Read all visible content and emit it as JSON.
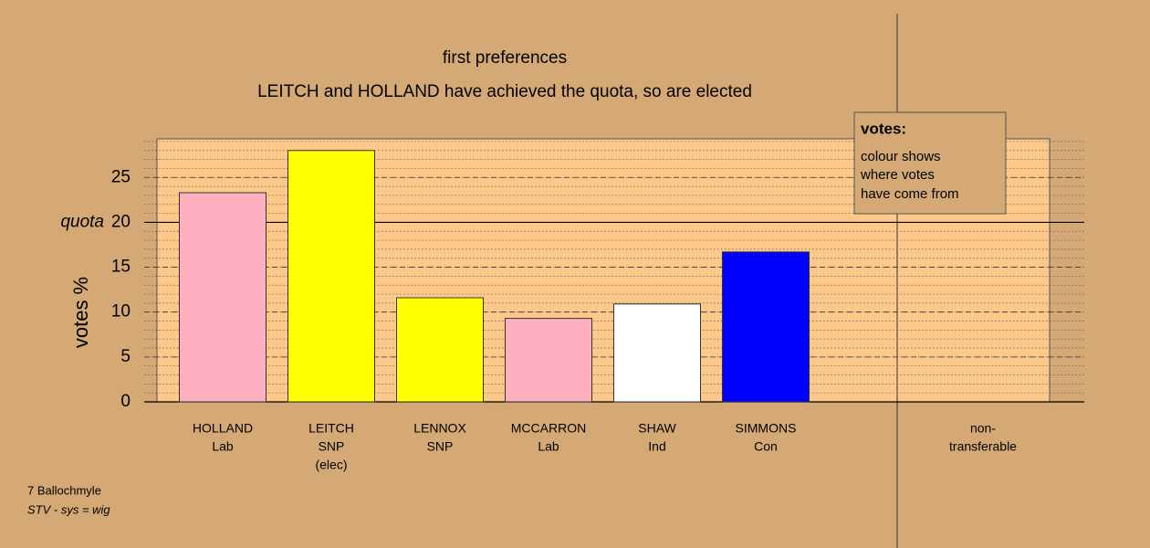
{
  "chart_data": {
    "type": "bar",
    "title": "first preferences",
    "subtitle": "LEITCH and HOLLAND have achieved the quota, so are elected",
    "y_label": "votes %",
    "categories": [
      [
        "HOLLAND",
        "Lab"
      ],
      [
        "LEITCH",
        "SNP",
        "(elec)"
      ],
      [
        "LENNOX",
        "SNP"
      ],
      [
        "MCCARRON",
        "Lab"
      ],
      [
        "SHAW",
        "Ind"
      ],
      [
        "SIMMONS",
        "Con"
      ],
      [
        "non-",
        "transferable"
      ]
    ],
    "values": [
      23.3,
      28,
      11.6,
      9.3,
      10.9,
      16.7,
      null
    ],
    "colors": [
      "#ffb0c0",
      "#ffff00",
      "#ffff00",
      "#ffb0c0",
      "#ffffff",
      "#0000ff",
      null
    ],
    "ylim": [
      0,
      29.3
    ],
    "yticks": [
      0,
      5,
      10,
      15,
      20,
      25
    ],
    "quota": 20,
    "quota_label": "quota",
    "grid": true,
    "minor_grid": true,
    "legend": {
      "title": "votes:",
      "lines": [
        "colour shows",
        "where votes",
        "have come from"
      ]
    },
    "footer": [
      "7 Ballochmyle",
      "STV - sys = wig"
    ]
  }
}
